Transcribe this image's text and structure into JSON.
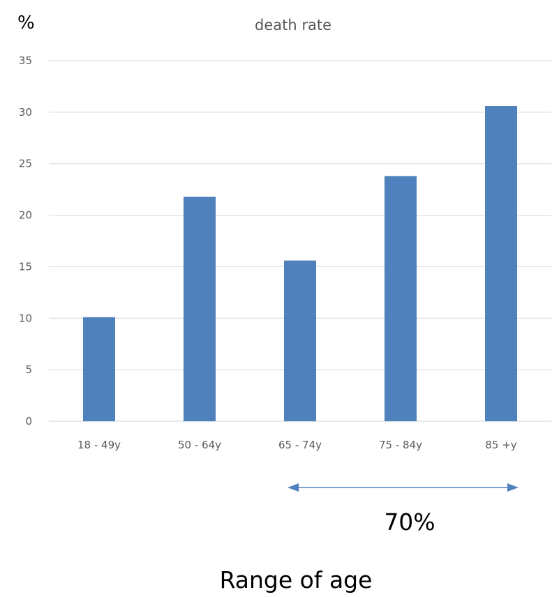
{
  "chart_data": {
    "type": "bar",
    "title": "death rate",
    "ylabel": "%",
    "xlabel": "Range of age",
    "categories": [
      "18 - 49y",
      "50 - 64y",
      "65 - 74y",
      "75 - 84y",
      "85 +y"
    ],
    "values": [
      10.1,
      21.8,
      15.6,
      23.8,
      30.6
    ],
    "ylim": [
      0,
      35
    ],
    "yticks": [
      "0",
      "5",
      "10",
      "15",
      "20",
      "25",
      "30",
      "35"
    ],
    "grid": true,
    "legend": "none",
    "bar_color": "#4F81BD",
    "annotation": {
      "text": "70%",
      "from_category": "65 - 74y",
      "to_category": "85 +y",
      "color": "#4F81BD"
    }
  }
}
